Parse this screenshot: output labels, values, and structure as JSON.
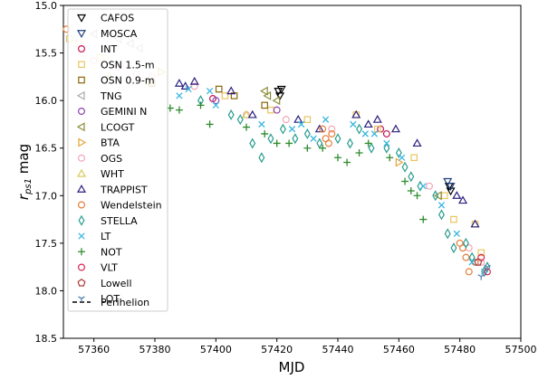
{
  "chart_data": {
    "type": "scatter",
    "xlabel": "MJD",
    "ylabel_main": "r",
    "ylabel_sub": "ps1",
    "ylabel_rest": " mag",
    "xlim": [
      57350,
      57500
    ],
    "ylim": [
      18.5,
      15.0
    ],
    "y_inverted": true,
    "xticks": [
      "57360",
      "57380",
      "57400",
      "57420",
      "57440",
      "57460",
      "57480",
      "57500"
    ],
    "yticks": [
      "15.0",
      "15.5",
      "16.0",
      "16.5",
      "17.0",
      "17.5",
      "18.0",
      "18.5"
    ],
    "grid": false,
    "legend_position": "upper-left",
    "perihelion_label": "Perihelion",
    "series": [
      {
        "name": "CAFOS",
        "color": "#000000",
        "marker": "tri-down",
        "points": [
          [
            57420.5,
            15.9
          ],
          [
            57421,
            15.95
          ],
          [
            57421.5,
            15.88
          ],
          [
            57476.5,
            16.9
          ],
          [
            57477,
            16.95
          ]
        ]
      },
      {
        "name": "MOSCA",
        "color": "#1f3f7a",
        "marker": "tri-down",
        "points": [
          [
            57476,
            16.85
          ],
          [
            57477,
            16.9
          ]
        ]
      },
      {
        "name": "INT",
        "color": "#c2185b",
        "marker": "circle",
        "points": [
          [
            57399,
            15.98
          ],
          [
            57454,
            16.3
          ],
          [
            57456,
            16.35
          ]
        ]
      },
      {
        "name": "OSN 1.5-m",
        "color": "#e8c560",
        "marker": "square",
        "points": [
          [
            57352,
            15.35
          ],
          [
            57355,
            15.4
          ],
          [
            57362,
            15.55
          ],
          [
            57378,
            15.8
          ],
          [
            57403,
            15.95
          ],
          [
            57418,
            16.1
          ],
          [
            57430,
            16.2
          ],
          [
            57446,
            16.15
          ],
          [
            57453,
            16.3
          ],
          [
            57465,
            16.6
          ],
          [
            57475,
            17.0
          ],
          [
            57478,
            17.25
          ],
          [
            57485,
            17.3
          ],
          [
            57487,
            17.6
          ]
        ]
      },
      {
        "name": "OSN 0.9-m",
        "color": "#8b6508",
        "marker": "square",
        "points": [
          [
            57379,
            15.82
          ],
          [
            57401,
            15.88
          ],
          [
            57406,
            15.95
          ],
          [
            57416,
            16.05
          ]
        ]
      },
      {
        "name": "TNG",
        "color": "#aaaaaa",
        "marker": "tri-left",
        "points": [
          [
            57360,
            15.3
          ],
          [
            57368,
            15.35
          ],
          [
            57372,
            15.4
          ],
          [
            57375,
            15.45
          ]
        ]
      },
      {
        "name": "GEMINI N",
        "color": "#8e44ad",
        "marker": "circle",
        "points": [
          [
            57400,
            16.0
          ],
          [
            57420,
            16.1
          ]
        ]
      },
      {
        "name": "LCOGT",
        "color": "#8b8b3a",
        "marker": "tri-left",
        "points": [
          [
            57416,
            15.9
          ],
          [
            57417,
            15.95
          ],
          [
            57420,
            16.0
          ],
          [
            57473,
            17.0
          ]
        ]
      },
      {
        "name": "BTA",
        "color": "#e8a33a",
        "marker": "tri-right",
        "points": [
          [
            57382,
            15.7
          ],
          [
            57460,
            16.65
          ]
        ]
      },
      {
        "name": "OGS",
        "color": "#f4a6b7",
        "marker": "circle",
        "points": [
          [
            57356,
            15.5
          ],
          [
            57360,
            15.58
          ],
          [
            57368,
            15.65
          ],
          [
            57374,
            15.72
          ],
          [
            57379,
            15.75
          ],
          [
            57393,
            15.85
          ],
          [
            57410,
            16.15
          ],
          [
            57423,
            16.2
          ],
          [
            57438,
            16.3
          ],
          [
            57470,
            16.9
          ],
          [
            57483,
            17.55
          ],
          [
            57487,
            17.7
          ]
        ]
      },
      {
        "name": "WHT",
        "color": "#d8c95a",
        "marker": "tri-up",
        "points": [
          [
            57365,
            15.75
          ],
          [
            57410,
            16.15
          ]
        ]
      },
      {
        "name": "TRAPPIST",
        "color": "#2a1f7e",
        "marker": "tri-up",
        "points": [
          [
            57388,
            15.82
          ],
          [
            57390,
            15.85
          ],
          [
            57393,
            15.8
          ],
          [
            57405,
            15.9
          ],
          [
            57412,
            16.15
          ],
          [
            57427,
            16.2
          ],
          [
            57434,
            16.3
          ],
          [
            57446,
            16.15
          ],
          [
            57450,
            16.25
          ],
          [
            57453,
            16.2
          ],
          [
            57459,
            16.3
          ],
          [
            57466,
            16.45
          ],
          [
            57479,
            17.0
          ],
          [
            57481,
            17.05
          ],
          [
            57485,
            17.3
          ]
        ]
      },
      {
        "name": "Wendelstein",
        "color": "#e67e3a",
        "marker": "circle",
        "points": [
          [
            57351,
            15.25
          ],
          [
            57435,
            16.3
          ],
          [
            57436,
            16.4
          ],
          [
            57437,
            16.45
          ],
          [
            57438,
            16.35
          ],
          [
            57480,
            17.5
          ],
          [
            57481,
            17.55
          ],
          [
            57482,
            17.65
          ],
          [
            57483,
            17.8
          ],
          [
            57485,
            17.7
          ]
        ]
      },
      {
        "name": "STELLA",
        "color": "#2a9d8f",
        "marker": "diamond",
        "points": [
          [
            57395,
            16.0
          ],
          [
            57405,
            16.15
          ],
          [
            57408,
            16.2
          ],
          [
            57412,
            16.45
          ],
          [
            57415,
            16.6
          ],
          [
            57418,
            16.4
          ],
          [
            57422,
            16.3
          ],
          [
            57426,
            16.4
          ],
          [
            57430,
            16.35
          ],
          [
            57434,
            16.45
          ],
          [
            57440,
            16.4
          ],
          [
            57444,
            16.45
          ],
          [
            57447,
            16.3
          ],
          [
            57451,
            16.5
          ],
          [
            57456,
            16.5
          ],
          [
            57460,
            16.55
          ],
          [
            57462,
            16.7
          ],
          [
            57464,
            16.8
          ],
          [
            57467,
            16.9
          ],
          [
            57472,
            17.0
          ],
          [
            57474,
            17.2
          ],
          [
            57476,
            17.4
          ],
          [
            57478,
            17.55
          ],
          [
            57482,
            17.5
          ],
          [
            57484,
            17.65
          ],
          [
            57488,
            17.8
          ],
          [
            57489,
            17.75
          ]
        ]
      },
      {
        "name": "LT",
        "color": "#3ab7e0",
        "marker": "x",
        "points": [
          [
            57388,
            15.95
          ],
          [
            57391,
            15.88
          ],
          [
            57398,
            15.9
          ],
          [
            57400,
            16.05
          ],
          [
            57415,
            16.25
          ],
          [
            57425,
            16.3
          ],
          [
            57428,
            16.25
          ],
          [
            57432,
            16.4
          ],
          [
            57436,
            16.2
          ],
          [
            57445,
            16.25
          ],
          [
            57449,
            16.35
          ],
          [
            57452,
            16.35
          ],
          [
            57456,
            16.45
          ],
          [
            57461,
            16.6
          ],
          [
            57468,
            16.9
          ],
          [
            57474,
            17.1
          ],
          [
            57479,
            17.4
          ],
          [
            57484,
            17.7
          ],
          [
            57488,
            17.8
          ]
        ]
      },
      {
        "name": "NOT",
        "color": "#2e8b2e",
        "marker": "plus",
        "points": [
          [
            57385,
            16.08
          ],
          [
            57388,
            16.1
          ],
          [
            57395,
            16.05
          ],
          [
            57398,
            16.25
          ],
          [
            57410,
            16.28
          ],
          [
            57416,
            16.35
          ],
          [
            57420,
            16.45
          ],
          [
            57424,
            16.45
          ],
          [
            57430,
            16.5
          ],
          [
            57435,
            16.5
          ],
          [
            57440,
            16.6
          ],
          [
            57443,
            16.65
          ],
          [
            57447,
            16.55
          ],
          [
            57450,
            16.45
          ],
          [
            57457,
            16.6
          ],
          [
            57462,
            16.85
          ],
          [
            57464,
            16.95
          ],
          [
            57466,
            17.0
          ],
          [
            57468,
            17.25
          ]
        ]
      },
      {
        "name": "VLT",
        "color": "#d62958",
        "marker": "circle",
        "points": [
          [
            57487,
            17.65
          ],
          [
            57489,
            17.8
          ]
        ]
      },
      {
        "name": "Lowell",
        "color": "#b03a3a",
        "marker": "pentagon",
        "points": [
          [
            57486,
            17.7
          ]
        ]
      },
      {
        "name": "LOT",
        "color": "#5a82b4",
        "marker": "tri-y",
        "points": [
          [
            57487,
            17.85
          ],
          [
            57489,
            17.75
          ]
        ]
      }
    ]
  }
}
